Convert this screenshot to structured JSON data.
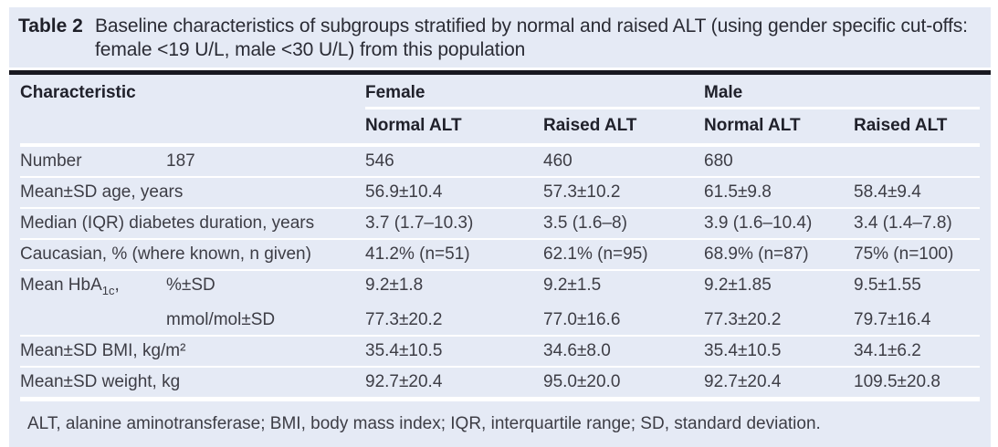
{
  "title": {
    "label": "Table 2",
    "text": "Baseline characteristics of subgroups stratified by normal and raised ALT (using gender specific cut-offs: female <19 U/L, male <30 U/L) from this population"
  },
  "header": {
    "characteristic": "Characteristic",
    "group_female": "Female",
    "group_male": "Male",
    "sub_female_normal": "Normal ALT",
    "sub_female_raised": "Raised ALT",
    "sub_male_normal": "Normal ALT",
    "sub_male_raised": "Raised ALT"
  },
  "rows": [
    {
      "label": "Number",
      "sub": "187",
      "values": [
        "546",
        "460",
        "680",
        ""
      ]
    },
    {
      "label": "Mean±SD age, years",
      "sub": "",
      "values": [
        "56.9±10.4",
        "57.3±10.2",
        "61.5±9.8",
        "58.4±9.4"
      ]
    },
    {
      "label": "Median (IQR) diabetes duration, years",
      "sub": "",
      "values": [
        "3.7 (1.7–10.3)",
        "3.5 (1.6–8)",
        "3.9 (1.6–10.4)",
        "3.4 (1.4–7.8)"
      ]
    },
    {
      "label": "Caucasian, % (where known, n given)",
      "sub": "",
      "values": [
        "41.2% (n=51)",
        "62.1% (n=95)",
        "68.9% (n=87)",
        "75% (n=100)"
      ]
    },
    {
      "label_pre": "Mean HbA",
      "label_sub": "1c",
      "label_post": ",",
      "sub": "%±SD",
      "values": [
        "9.2±1.8",
        "9.2±1.5",
        "9.2±1.85",
        "9.5±1.55"
      ]
    },
    {
      "label": "",
      "sub": "mmol/mol±SD",
      "values": [
        "77.3±20.2",
        "77.0±16.6",
        "77.3±20.2",
        "79.7±16.4"
      ]
    },
    {
      "label": "Mean±SD BMI, kg/m²",
      "sub": "",
      "values": [
        "35.4±10.5",
        "34.6±8.0",
        "35.4±10.5",
        "34.1±6.2"
      ]
    },
    {
      "label": "Mean±SD weight, kg",
      "sub": "",
      "values": [
        "92.7±20.4",
        "95.0±20.0",
        "92.7±20.4",
        "109.5±20.8"
      ]
    }
  ],
  "footnote": "ALT, alanine aminotransferase; BMI, body mass index; IQR, interquartile range; SD, standard deviation.",
  "colors": {
    "panel_background": "#e5eaf5",
    "top_rule": "#181820",
    "separator": "#ffffff",
    "body_text": "#3d3d45",
    "heading_text": "#20212b"
  }
}
